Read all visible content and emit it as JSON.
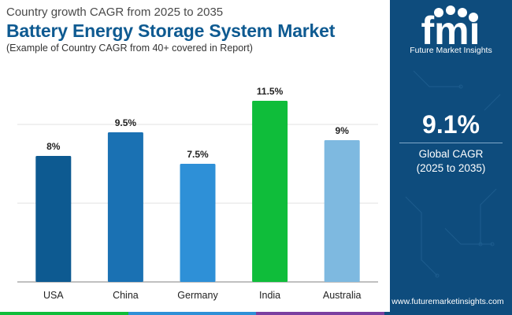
{
  "header": {
    "subtitle": "Country growth CAGR from 2025 to 2035",
    "title": "Battery Energy Storage System Market",
    "note": "(Example of Country CAGR from 40+ covered in Report)"
  },
  "chart_data": {
    "type": "bar",
    "title": "Battery Energy Storage System Market",
    "categories": [
      "USA",
      "China",
      "Germany",
      "India",
      "Australia"
    ],
    "values": [
      8,
      9.5,
      7.5,
      11.5,
      9
    ],
    "value_labels": [
      "8%",
      "9.5%",
      "7.5%",
      "11.5%",
      "9%"
    ],
    "colors": [
      "#0d5a91",
      "#1a71b3",
      "#2e90d7",
      "#0fbd3a",
      "#7eb9e0"
    ],
    "ylim": [
      0,
      11.5
    ],
    "grid": true,
    "xlabel": "",
    "ylabel": ""
  },
  "sidebar": {
    "logo_text": "fmi",
    "logo_name": "Future Market Insights",
    "cagr_value": "9.1%",
    "cagr_label": "Global CAGR",
    "cagr_period": "(2025 to 2035)",
    "website": "www.futuremarketinsights.com",
    "background": "#0e4c7d"
  },
  "footer": {
    "colors": [
      "#0fbd3a",
      "#2e90d7",
      "#7a3fa0",
      "#0e4c7d"
    ]
  }
}
